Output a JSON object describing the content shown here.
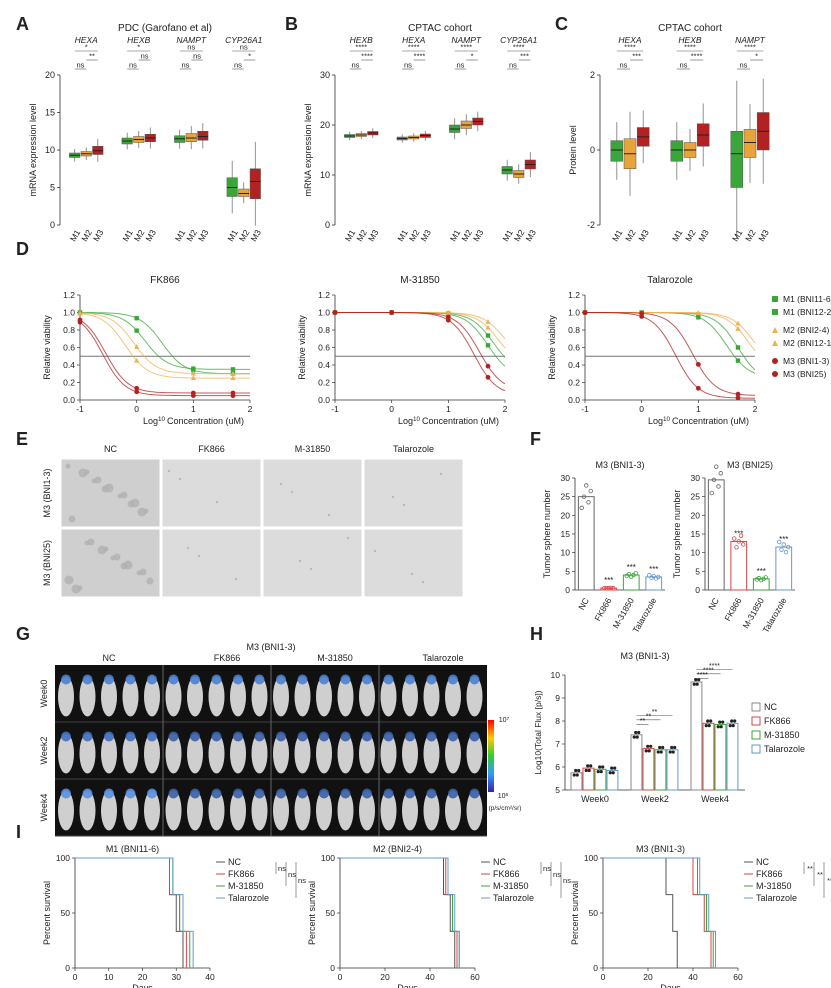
{
  "panel_letters": [
    "A",
    "B",
    "C",
    "D",
    "E",
    "F",
    "G",
    "H",
    "I"
  ],
  "common": {
    "groups": [
      "M1",
      "M2",
      "M3"
    ],
    "colors": {
      "M1": "#3aa63a",
      "M2": "#e8a33a",
      "M3": "#b22222"
    },
    "ns": "ns"
  },
  "chart_data": [
    {
      "panel": "A",
      "type": "box",
      "title": "PDC (Garofano et al)",
      "ylabel": "mRNA expression level",
      "ylim": [
        0,
        20
      ],
      "yticks": [
        0,
        5,
        10,
        15,
        20
      ],
      "genes": [
        "HEXA",
        "HEXB",
        "NAMPT",
        "CYP26A1"
      ],
      "boxes": [
        [
          [
            9.0,
            9.3,
            9.6
          ],
          [
            9.2,
            9.5,
            9.8
          ],
          [
            9.4,
            9.9,
            10.5
          ]
        ],
        [
          [
            10.8,
            11.2,
            11.6
          ],
          [
            11.0,
            11.4,
            11.8
          ],
          [
            11.1,
            11.6,
            12.1
          ]
        ],
        [
          [
            11.0,
            11.5,
            11.9
          ],
          [
            11.1,
            11.6,
            12.2
          ],
          [
            11.3,
            11.8,
            12.5
          ]
        ],
        [
          [
            3.8,
            5.0,
            6.3
          ],
          [
            3.8,
            4.2,
            4.8
          ],
          [
            3.5,
            5.8,
            7.5
          ]
        ]
      ],
      "sig": [
        [
          "*",
          "**",
          "ns"
        ],
        [
          "*",
          "ns",
          "ns"
        ],
        [
          "ns",
          "ns",
          "ns"
        ],
        [
          "ns",
          "*",
          "ns"
        ]
      ]
    },
    {
      "panel": "B",
      "type": "box",
      "title": "CPTAC cohort",
      "ylabel": "mRNA expression level",
      "ylim": [
        0,
        30
      ],
      "yticks": [
        0,
        10,
        20,
        30
      ],
      "genes": [
        "HEXB",
        "HEXA",
        "NAMPT",
        "CYP26A1"
      ],
      "boxes": [
        [
          [
            17.5,
            17.8,
            18.1
          ],
          [
            17.7,
            18.0,
            18.3
          ],
          [
            18.0,
            18.4,
            18.7
          ]
        ],
        [
          [
            17.0,
            17.3,
            17.6
          ],
          [
            17.2,
            17.5,
            17.8
          ],
          [
            17.5,
            17.9,
            18.2
          ]
        ],
        [
          [
            18.5,
            19.2,
            20.0
          ],
          [
            19.3,
            20.0,
            20.8
          ],
          [
            20.0,
            20.7,
            21.4
          ]
        ],
        [
          [
            10.2,
            11.0,
            11.7
          ],
          [
            9.5,
            10.2,
            10.9
          ],
          [
            11.2,
            12.1,
            13.0
          ]
        ]
      ],
      "sig": [
        [
          "****",
          "****",
          "ns"
        ],
        [
          "****",
          "****",
          "ns"
        ],
        [
          "****",
          "*",
          "ns"
        ],
        [
          "****",
          "***",
          "ns"
        ]
      ]
    },
    {
      "panel": "C",
      "type": "box",
      "title": "CPTAC cohort",
      "ylabel": "Protein level",
      "ylim": [
        -2,
        2
      ],
      "yticks": [
        -2,
        0,
        2
      ],
      "genes": [
        "HEXA",
        "HEXB",
        "NAMPT"
      ],
      "boxes": [
        [
          [
            -0.3,
            0.0,
            0.25
          ],
          [
            -0.5,
            -0.1,
            0.3
          ],
          [
            0.1,
            0.35,
            0.6
          ]
        ],
        [
          [
            -0.3,
            0.0,
            0.25
          ],
          [
            -0.2,
            0.0,
            0.2
          ],
          [
            0.1,
            0.4,
            0.7
          ]
        ],
        [
          [
            -1.0,
            -0.1,
            0.5
          ],
          [
            -0.2,
            0.2,
            0.55
          ],
          [
            0.0,
            0.5,
            1.0
          ]
        ]
      ],
      "sig": [
        [
          "****",
          "***",
          "ns"
        ],
        [
          "****",
          "****",
          "ns"
        ],
        [
          "****",
          "*",
          "ns"
        ]
      ]
    },
    {
      "panel": "D",
      "type": "line",
      "xlabel": "Log10 Concentration (uM)",
      "ylabel": "Relative viability",
      "xlim": [
        -1,
        2
      ],
      "xticks": [
        -1,
        0,
        1,
        2
      ],
      "ylim": [
        0,
        1.2
      ],
      "yticks": [
        0,
        0.2,
        0.4,
        0.6,
        0.8,
        1.0,
        1.2
      ],
      "threshold": 0.5,
      "legend": [
        "M1 (BNI11-6)",
        "M1 (BNI12-2)",
        "M2 (BNI2-4)",
        "M2 (BNI12-1)",
        "M3 (BNI1-3)",
        "M3 (BNI25)"
      ],
      "legend_colors": [
        "#3aa63a",
        "#3aa63a",
        "#f0b050",
        "#f0b050",
        "#b22222",
        "#b22222"
      ],
      "charts": [
        {
          "title": "FK866",
          "ic50": [
            0.15,
            0.45,
            -0.2,
            -0.05,
            -0.6,
            -0.55
          ],
          "bottom": [
            0.35,
            0.3,
            0.25,
            0.3,
            0.05,
            0.08
          ]
        },
        {
          "title": "M-31850",
          "ic50": [
            1.8,
            1.7,
            1.9,
            2.0,
            1.55,
            1.45
          ],
          "bottom": [
            0.3,
            0.25,
            0.35,
            0.4,
            0.1,
            0.05
          ]
        },
        {
          "title": "Talarozole",
          "ic50": [
            1.7,
            1.5,
            1.9,
            2.0,
            0.6,
            0.9
          ],
          "bottom": [
            0.2,
            0.25,
            0.3,
            0.3,
            0.02,
            0.05
          ]
        }
      ]
    },
    {
      "panel": "F",
      "type": "bar",
      "ylabel": "Tumor sphere number",
      "categories": [
        "NC",
        "FK866",
        "M-31850",
        "Talarozole"
      ],
      "bar_colors": [
        "#666666",
        "#d44",
        "#3aa63a",
        "#6699cc"
      ],
      "charts": [
        {
          "title": "M3 (BNI1-3)",
          "ylim": [
            0,
            30
          ],
          "yticks": [
            0,
            5,
            10,
            15,
            20,
            25,
            30
          ],
          "values": [
            25,
            0.5,
            4,
            3.5
          ],
          "sig": [
            "",
            "***",
            "***",
            "***"
          ]
        },
        {
          "title": "M3 (BNI25)",
          "ylim": [
            0,
            30
          ],
          "yticks": [
            0,
            5,
            10,
            15,
            20,
            25,
            30
          ],
          "values": [
            29.5,
            13,
            3,
            11.5
          ],
          "sig": [
            "",
            "***",
            "***",
            "***"
          ]
        }
      ]
    },
    {
      "panel": "H",
      "type": "bar",
      "title": "M3 (BNI1-3)",
      "ylabel": "Log10(Total Flux [p/s])",
      "categories": [
        "Week0",
        "Week2",
        "Week4"
      ],
      "ylim": [
        5,
        10
      ],
      "yticks": [
        5,
        6,
        7,
        8,
        9,
        10
      ],
      "series": [
        {
          "name": "NC",
          "values": [
            5.75,
            7.4,
            9.7
          ],
          "color": "#888888"
        },
        {
          "name": "FK866",
          "values": [
            5.95,
            6.8,
            7.9
          ],
          "color": "#d44444"
        },
        {
          "name": "M-31850",
          "values": [
            5.9,
            6.75,
            7.85
          ],
          "color": "#3aa63a"
        },
        {
          "name": "Talarozole",
          "values": [
            5.85,
            6.75,
            7.9
          ],
          "color": "#6699cc"
        }
      ],
      "sig": [
        "****",
        "****",
        "****",
        "**",
        "**",
        "**"
      ]
    },
    {
      "panel": "I",
      "type": "line",
      "xlabel": "Days",
      "ylabel": "Percent survival",
      "ylim": [
        0,
        100
      ],
      "yticks": [
        0,
        50,
        100
      ],
      "legend": [
        "NC",
        "FK866",
        "M-31850",
        "Talarozole"
      ],
      "legend_colors": [
        "#555555",
        "#d44444",
        "#3aa63a",
        "#6699cc"
      ],
      "charts": [
        {
          "title": "M1 (BNI11-6)",
          "xlim": [
            0,
            40
          ],
          "xticks": [
            0,
            10,
            20,
            30,
            40
          ],
          "deaths": [
            [
              28,
              30,
              32
            ],
            [
              28,
              31,
              33
            ],
            [
              29,
              31,
              34
            ],
            [
              29,
              32,
              35
            ]
          ],
          "sig": [
            "ns",
            "ns",
            "ns"
          ]
        },
        {
          "title": "M2 (BNI2-4)",
          "xlim": [
            0,
            60
          ],
          "xticks": [
            0,
            20,
            40,
            60
          ],
          "deaths": [
            [
              46,
              49,
              51
            ],
            [
              47,
              50,
              52
            ],
            [
              48,
              50,
              53
            ],
            [
              48,
              51,
              53
            ]
          ],
          "sig": [
            "ns",
            "ns",
            "ns"
          ]
        },
        {
          "title": "M3 (BNI1-3)",
          "xlim": [
            0,
            60
          ],
          "xticks": [
            0,
            20,
            40,
            60
          ],
          "deaths": [
            [
              28,
              31,
              33
            ],
            [
              40,
              45,
              48
            ],
            [
              42,
              46,
              49
            ],
            [
              43,
              47,
              50
            ]
          ],
          "sig": [
            "**",
            "**",
            "**"
          ]
        }
      ]
    }
  ],
  "panel_e": {
    "columns": [
      "NC",
      "FK866",
      "M-31850",
      "Talarozole"
    ],
    "rows": [
      "M3 (BNI1-3)",
      "M3 (BNI25)"
    ]
  },
  "panel_g": {
    "title": "M3 (BNI1-3)",
    "columns": [
      "NC",
      "FK866",
      "M-31850",
      "Talarozole"
    ],
    "rows": [
      "Week0",
      "Week2",
      "Week4"
    ],
    "scale_max": "10^7",
    "scale_min": "10^6",
    "scale_unit": "(p/s/cm²/sr)"
  }
}
